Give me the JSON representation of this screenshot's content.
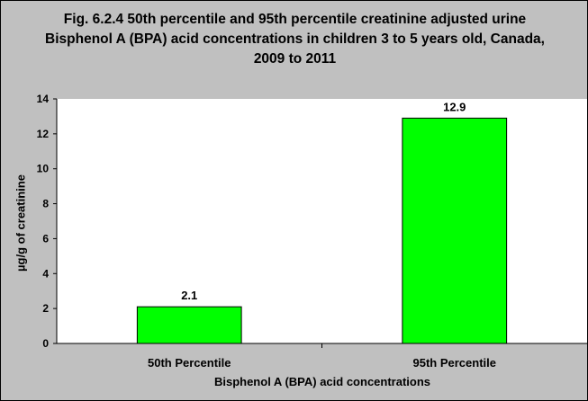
{
  "colors": {
    "background": "#c0c0c0",
    "plot_background": "#ffffff",
    "bar_fill": "#00ff00",
    "bar_stroke": "#000000"
  },
  "chart_data": {
    "type": "bar",
    "title": "Fig. 6.2.4 50th percentile and 95th percentile creatinine adjusted urine Bisphenol A (BPA) acid concentrations in children 3 to 5 years old, Canada, 2009 to 2011",
    "xlabel": "Bisphenol A (BPA) acid concentrations",
    "ylabel": "µg/g of creatinine",
    "categories": [
      "50th Percentile",
      "95th Percentile"
    ],
    "values": [
      2.1,
      12.9
    ],
    "data_labels": [
      "2.1",
      "12.9"
    ],
    "ylim": [
      0,
      14
    ],
    "yticks": [
      0,
      2,
      4,
      6,
      8,
      10,
      12,
      14
    ],
    "grid": false,
    "legend": "none"
  }
}
